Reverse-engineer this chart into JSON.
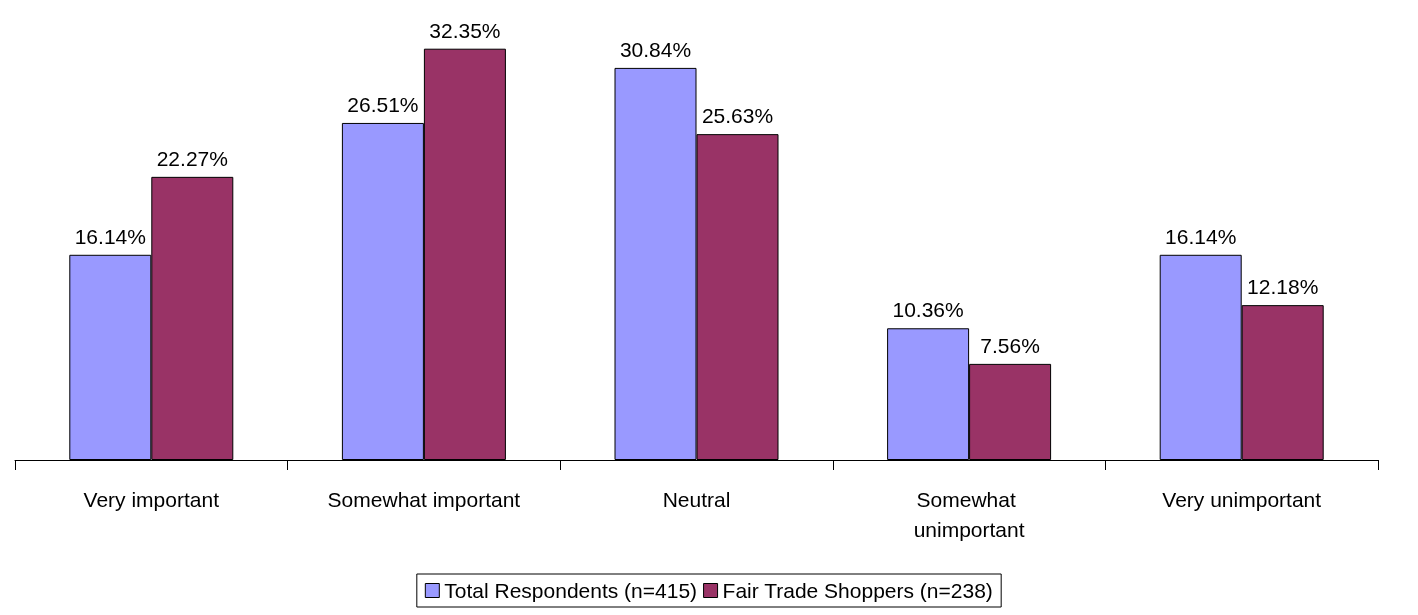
{
  "chart_data": {
    "type": "bar",
    "categories": [
      "Very important",
      "Somewhat important",
      "Neutral",
      "Somewhat unimportant",
      "Very unimportant"
    ],
    "series": [
      {
        "name": "Total Respondents (n=415)",
        "color": "#9999ff",
        "values": [
          16.14,
          26.51,
          30.84,
          10.36,
          16.14
        ],
        "value_labels": [
          "16.14%",
          "26.51%",
          "30.84%",
          "10.36%",
          "16.14%"
        ]
      },
      {
        "name": "Fair Trade Shoppers (n=238)",
        "color": "#993366",
        "values": [
          22.27,
          32.35,
          25.63,
          7.56,
          12.18
        ],
        "value_labels": [
          "22.27%",
          "32.35%",
          "25.63%",
          "7.56%",
          "12.18%"
        ]
      }
    ],
    "grid": false,
    "legend": "bottom"
  }
}
